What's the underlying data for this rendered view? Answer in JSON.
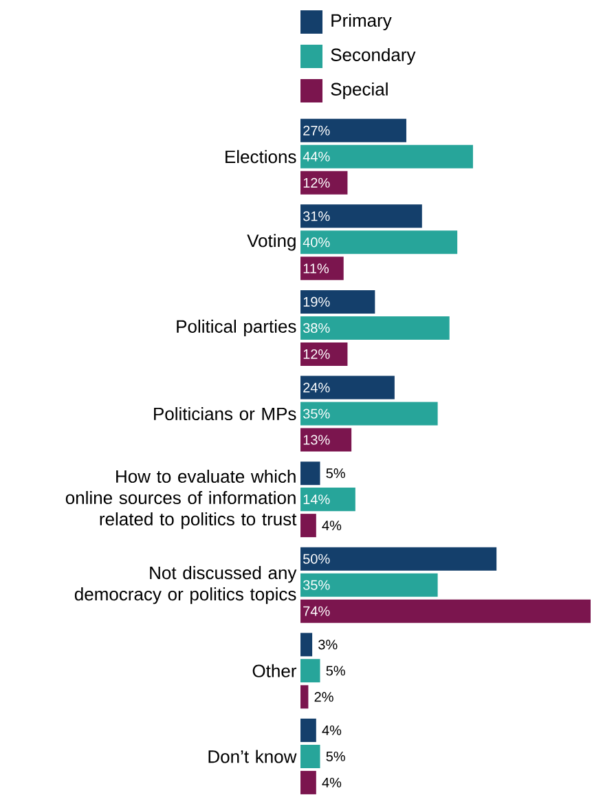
{
  "chart_data": {
    "type": "bar",
    "orientation": "horizontal",
    "legend": "top",
    "categories": [
      "Elections",
      "Voting",
      "Political parties",
      "Politicians or MPs",
      "How to evaluate which online sources of information related to politics to trust",
      "Not discussed any democracy or politics topics",
      "Other",
      "Don’t know"
    ],
    "series": [
      {
        "name": "Primary",
        "color": "#143f6b",
        "values": [
          27,
          31,
          19,
          24,
          5,
          50,
          3,
          4
        ],
        "value_labels": [
          "27%",
          "31%",
          "19%",
          "24%",
          "5%",
          "50%",
          "3%",
          "4%"
        ]
      },
      {
        "name": "Secondary",
        "color": "#27a59a",
        "values": [
          44,
          40,
          38,
          35,
          14,
          35,
          5,
          5
        ],
        "value_labels": [
          "44%",
          "40%",
          "38%",
          "35%",
          "14%",
          "35%",
          "5%",
          "5%"
        ]
      },
      {
        "name": "Special",
        "color": "#7b154e",
        "values": [
          12,
          11,
          12,
          13,
          4,
          74,
          2,
          4
        ],
        "value_labels": [
          "12%",
          "11%",
          "12%",
          "13%",
          "4%",
          "74%",
          "2%",
          "4%"
        ]
      }
    ]
  }
}
